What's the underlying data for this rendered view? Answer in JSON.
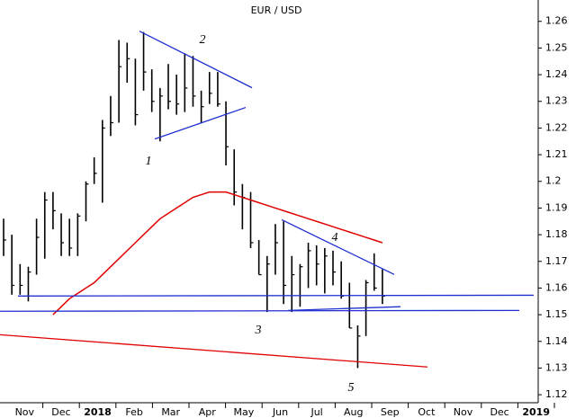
{
  "chart_data": {
    "type": "ohlc",
    "title": "EUR / USD",
    "categories": [
      "Nov",
      "Dec",
      "2018",
      "Feb",
      "Mar",
      "Apr",
      "May",
      "Jun",
      "Jul",
      "Aug",
      "Sep",
      "Oct",
      "Nov",
      "Dec",
      "2019"
    ],
    "bars": {
      "color": "#000000",
      "high": [
        1.186,
        1.18,
        1.169,
        1.168,
        1.186,
        1.196,
        1.196,
        1.188,
        1.186,
        1.188,
        1.2,
        1.209,
        1.223,
        1.232,
        1.253,
        1.252,
        1.246,
        1.256,
        1.242,
        1.235,
        1.244,
        1.24,
        1.248,
        1.247,
        1.234,
        1.241,
        1.241,
        1.23,
        1.212,
        1.199,
        1.196,
        1.178,
        1.172,
        1.184,
        1.185,
        1.172,
        1.169,
        1.177,
        1.176,
        1.175,
        1.174,
        1.17,
        1.162,
        1.146,
        1.163,
        1.173,
        1.167
      ],
      "low": [
        1.172,
        1.1575,
        1.1575,
        1.155,
        1.165,
        1.171,
        1.182,
        1.172,
        1.172,
        1.172,
        1.185,
        1.199,
        1.192,
        1.217,
        1.222,
        1.237,
        1.221,
        1.234,
        1.226,
        1.215,
        1.227,
        1.225,
        1.226,
        1.228,
        1.222,
        1.229,
        1.228,
        1.206,
        1.191,
        1.182,
        1.175,
        1.165,
        1.151,
        1.165,
        1.154,
        1.151,
        1.153,
        1.16,
        1.161,
        1.158,
        1.161,
        1.156,
        1.145,
        1.13,
        1.142,
        1.159,
        1.154
      ],
      "close": [
        1.178,
        1.161,
        1.161,
        1.166,
        1.179,
        1.193,
        1.189,
        1.177,
        1.175,
        1.187,
        1.199,
        1.203,
        1.22,
        1.222,
        1.243,
        1.246,
        1.225,
        1.241,
        1.23,
        1.232,
        1.23,
        1.229,
        1.235,
        1.232,
        1.228,
        1.233,
        1.229,
        1.213,
        1.196,
        1.194,
        1.177,
        1.165,
        1.169,
        1.177,
        1.161,
        1.165,
        1.168,
        1.174,
        1.169,
        1.172,
        1.166,
        1.157,
        1.145,
        1.142,
        1.162,
        1.16,
        1.157
      ]
    },
    "moving_average": {
      "color": "#e00000",
      "values": [
        null,
        null,
        null,
        null,
        null,
        null,
        1.15,
        1.153,
        1.156,
        1.158,
        1.16,
        1.162,
        1.165,
        1.168,
        1.171,
        1.174,
        1.177,
        1.18,
        1.183,
        1.186,
        1.188,
        1.19,
        1.192,
        1.194,
        1.195,
        1.196,
        1.196,
        1.196,
        1.195,
        1.194,
        1.193,
        1.192,
        1.191,
        1.19,
        1.189,
        1.188,
        1.187,
        1.186,
        1.185,
        1.184,
        1.183,
        1.182,
        1.181,
        1.18,
        1.179,
        1.178,
        1.177
      ]
    },
    "trendlines": [
      {
        "color": "#1f2fd0",
        "values": [
          1.2563,
          1.2351
        ]
      },
      {
        "color": "#1f2fd0",
        "values": [
          1.2159,
          1.2277
        ]
      },
      {
        "color": "#1f2fd0",
        "values": [
          1.1856,
          1.1651
        ]
      },
      {
        "color": "#1f2fd0",
        "values": [
          1.157,
          1.1573
        ]
      },
      {
        "color": "#1f2fd0",
        "values": [
          1.1513,
          1.1516
        ]
      },
      {
        "color": "#1f2fd0",
        "values": [
          1.1516,
          1.153
        ]
      },
      {
        "color": "#e00000",
        "values": [
          1.1425,
          1.1304
        ]
      }
    ],
    "annotations": [
      "1",
      "2",
      "3",
      "4",
      "5"
    ],
    "ylim": [
      1.117,
      1.268
    ],
    "yticks": [
      1.12,
      1.13,
      1.14,
      1.15,
      1.16,
      1.17,
      1.18,
      1.19,
      1.2,
      1.21,
      1.22,
      1.23,
      1.24,
      1.25,
      1.26
    ]
  }
}
